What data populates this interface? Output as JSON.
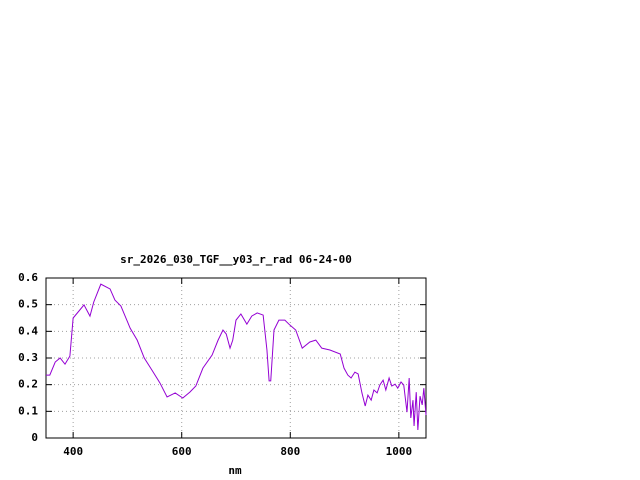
{
  "chart_data": {
    "type": "line",
    "title": "sr_2026_030_TGF__y03_r_rad 06-24-00",
    "x_label": "nm",
    "color": "#9400d3",
    "x": [
      350,
      357,
      367,
      376,
      385,
      394,
      400,
      409,
      420,
      431,
      438,
      451,
      468,
      477,
      488,
      505,
      518,
      531,
      545,
      560,
      573,
      588,
      602,
      615,
      626,
      639,
      656,
      667,
      676,
      682,
      689,
      694,
      700,
      709,
      720,
      729,
      739,
      750,
      757,
      761,
      764,
      770,
      779,
      790,
      799,
      810,
      822,
      836,
      847,
      858,
      873,
      892,
      899,
      906,
      912,
      919,
      925,
      932,
      938,
      943,
      949,
      954,
      960,
      965,
      971,
      976,
      982,
      987,
      993,
      998,
      1004,
      1009,
      1015,
      1019,
      1022,
      1026,
      1028,
      1032,
      1035,
      1039,
      1043,
      1046,
      1050
    ],
    "values": [
      0.236,
      0.236,
      0.285,
      0.3,
      0.277,
      0.307,
      0.45,
      0.472,
      0.499,
      0.457,
      0.51,
      0.577,
      0.559,
      0.517,
      0.495,
      0.412,
      0.367,
      0.3,
      0.255,
      0.206,
      0.154,
      0.169,
      0.15,
      0.172,
      0.195,
      0.262,
      0.311,
      0.367,
      0.405,
      0.39,
      0.337,
      0.367,
      0.442,
      0.465,
      0.427,
      0.457,
      0.469,
      0.461,
      0.33,
      0.214,
      0.214,
      0.405,
      0.442,
      0.442,
      0.424,
      0.405,
      0.337,
      0.36,
      0.367,
      0.337,
      0.33,
      0.315,
      0.262,
      0.236,
      0.225,
      0.247,
      0.24,
      0.169,
      0.12,
      0.161,
      0.142,
      0.18,
      0.169,
      0.199,
      0.217,
      0.18,
      0.225,
      0.195,
      0.202,
      0.187,
      0.21,
      0.199,
      0.097,
      0.225,
      0.075,
      0.142,
      0.045,
      0.172,
      0.03,
      0.157,
      0.124,
      0.187,
      0.086
    ],
    "xlim": [
      350,
      1050
    ],
    "xticks": [
      400,
      600,
      800,
      1000
    ],
    "ylim": [
      0,
      0.6
    ],
    "yticks": [
      0,
      0.1,
      0.2,
      0.3,
      0.4,
      0.5,
      0.6
    ],
    "grid": true
  }
}
